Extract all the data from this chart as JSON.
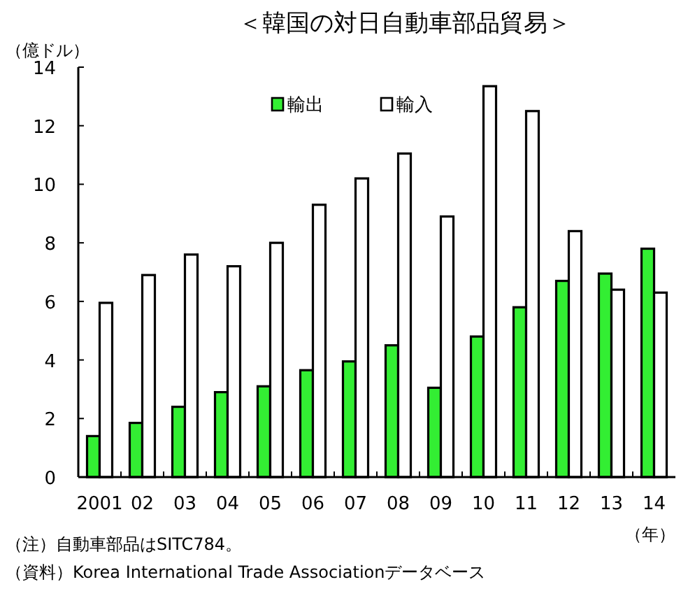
{
  "chart_data": {
    "type": "bar",
    "title": "＜韓国の対日自動車部品貿易＞",
    "ylabel": "（億ドル）",
    "xlabel": "（年）",
    "categories": [
      "2001",
      "02",
      "03",
      "04",
      "05",
      "06",
      "07",
      "08",
      "09",
      "10",
      "11",
      "12",
      "13",
      "14"
    ],
    "series": [
      {
        "name": "輸出",
        "color": "#33ee33",
        "values": [
          1.4,
          1.85,
          2.4,
          2.9,
          3.1,
          3.65,
          3.95,
          4.5,
          3.05,
          4.8,
          5.8,
          6.7,
          6.95,
          7.8
        ]
      },
      {
        "name": "輸入",
        "color": "#ffffff",
        "values": [
          5.95,
          6.9,
          7.6,
          7.2,
          8.0,
          9.3,
          10.2,
          11.05,
          8.9,
          13.35,
          12.5,
          8.4,
          6.4,
          6.3
        ]
      }
    ],
    "ylim": [
      0,
      14
    ],
    "yticks": [
      0,
      2,
      4,
      6,
      8,
      10,
      12,
      14
    ],
    "legend": "top",
    "grid": false,
    "annotations": [
      "（注）自動車部品はSITC784。",
      "（資料）Korea International Trade Associationデータベース"
    ]
  }
}
